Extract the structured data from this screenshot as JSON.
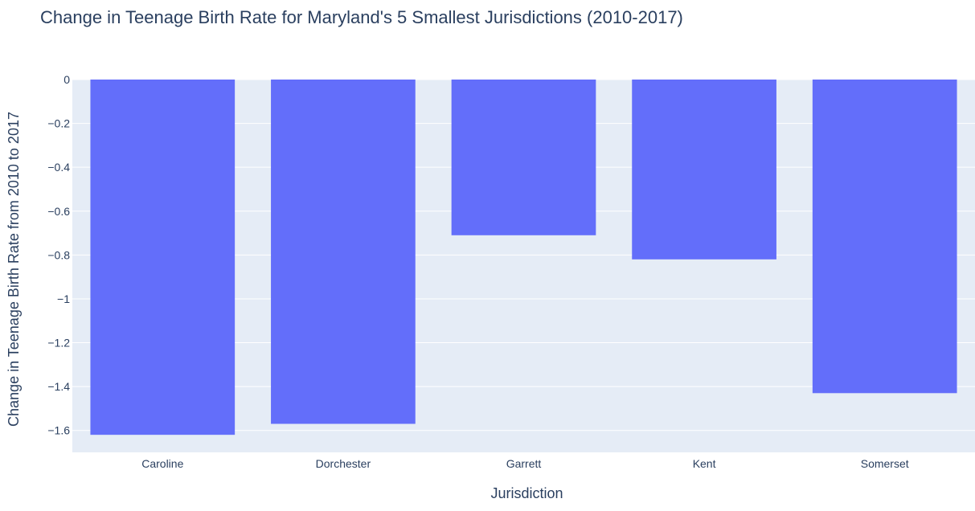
{
  "chart_data": {
    "type": "bar",
    "title": "Change in Teenage Birth Rate for Maryland's 5 Smallest Jurisdictions (2010-2017)",
    "xlabel": "Jurisdiction",
    "ylabel": "Change in Teenage Birth Rate from 2010 to 2017",
    "categories": [
      "Caroline",
      "Dorchester",
      "Garrett",
      "Kent",
      "Somerset"
    ],
    "values": [
      -1.62,
      -1.57,
      -0.71,
      -0.82,
      -1.43
    ],
    "ylim": [
      -1.7,
      0
    ],
    "yticks": [
      0,
      -0.2,
      -0.4,
      -0.6,
      -0.8,
      -1,
      -1.2,
      -1.4,
      -1.6
    ],
    "ytick_labels": [
      "0",
      "−0.2",
      "−0.4",
      "−0.6",
      "−0.8",
      "−1",
      "−1.2",
      "−1.4",
      "−1.6"
    ],
    "grid": true,
    "colors": {
      "bar": "#636efa",
      "plot_bg": "#e5ecf6",
      "grid": "#ffffff",
      "text": "#2a3f5f"
    }
  }
}
